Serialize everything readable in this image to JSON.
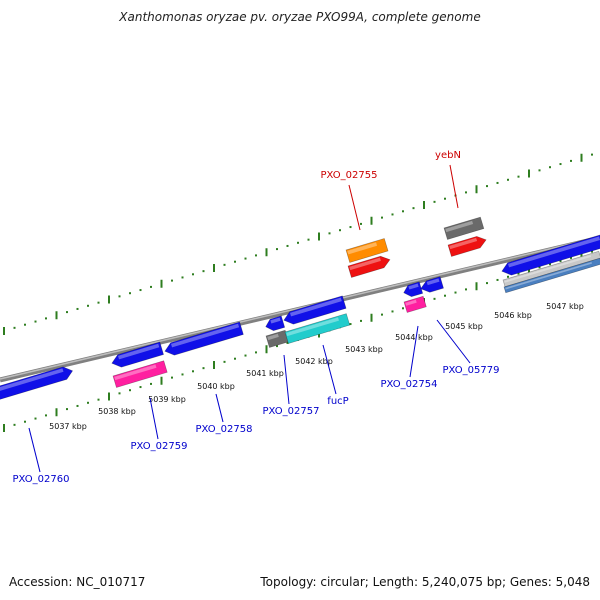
{
  "title": "Xanthomonas oryzae pv. oryzae PXO99A, complete genome",
  "footer": {
    "accession": "Accession: NC_010717",
    "summary": "Topology: circular; Length: 5,240,075 bp; Genes: 5,048"
  },
  "colors": {
    "backbone": "#808080",
    "tick": "#2e7d1f",
    "cds_blue": "#1010e8",
    "cds_pink": "#ff1fa0",
    "cds_gray": "#6a6a6a",
    "cds_cyan": "#22cccc",
    "cds_orange": "#ff8c00",
    "cds_red": "#ee1111",
    "label_blue": "#0000cc",
    "label_red": "#cc0000"
  },
  "ticks": [
    "5037 kbp",
    "5038 kbp",
    "5039 kbp",
    "5040 kbp",
    "5041 kbp",
    "5042 kbp",
    "5043 kbp",
    "5044 kbp",
    "5045 kbp",
    "5046 kbp",
    "5047 kbp"
  ],
  "gene_labels": [
    {
      "id": "PXO_02760",
      "text": "PXO_02760",
      "color": "blue"
    },
    {
      "id": "PXO_02759",
      "text": "PXO_02759",
      "color": "blue"
    },
    {
      "id": "PXO_02758",
      "text": "PXO_02758",
      "color": "blue"
    },
    {
      "id": "PXO_02757",
      "text": "PXO_02757",
      "color": "blue"
    },
    {
      "id": "fucP",
      "text": "fucP",
      "color": "blue"
    },
    {
      "id": "PXO_02754",
      "text": "PXO_02754",
      "color": "blue"
    },
    {
      "id": "PXO_05779",
      "text": "PXO_05779",
      "color": "blue"
    },
    {
      "id": "PXO_02755",
      "text": "PXO_02755",
      "color": "red"
    },
    {
      "id": "yebN",
      "text": "yebN",
      "color": "red"
    }
  ]
}
